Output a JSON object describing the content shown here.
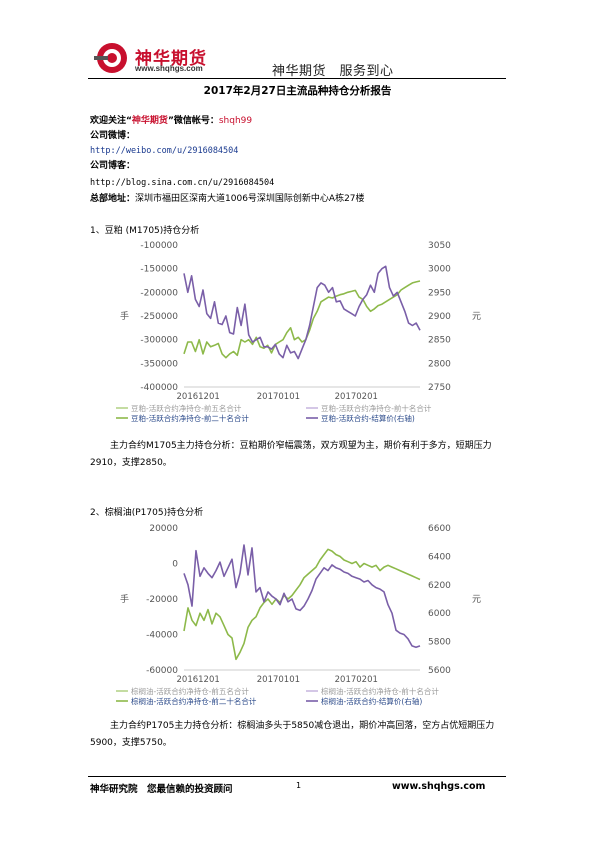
{
  "header": {
    "logo_text": "神华期货",
    "logo_url": "www.shqhgs.com",
    "slogan": "神华期货　服务到心"
  },
  "report_title": "2017年2月27日主流品种持仓分析报告",
  "info": {
    "follow_prefix": "欢迎关注“",
    "follow_brand": "神华期货",
    "follow_suffix": "”微信帐号：",
    "wechat_id": "shqh99",
    "weibo_label": "公司微博：",
    "weibo_url": "http://weibo.com/u/2916084504",
    "blog_label": "公司博客：",
    "blog_url": "http://blog.sina.com.cn/u/2916084504",
    "address_label": "总部地址：",
    "address": "深圳市福田区深南大道1006号深圳国际创新中心A栋27楼"
  },
  "sections": [
    {
      "heading": "1、豆粕 (M1705)持仓分析",
      "paragraph": "主力合约M1705主力持仓分析：豆粕期价窄幅震荡，双方观望为主，期价有利于多方，短期压力2910，支撑2850。"
    },
    {
      "heading": "2、棕榈油(P1705)持仓分析",
      "paragraph": "主力合约P1705主力持仓分析：棕榈油多头于5850减仓退出，期价冲高回落，空方占优短期压力5900，支撑5750。"
    }
  ],
  "chart_data": [
    {
      "type": "line",
      "left_axis_unit": "手",
      "right_axis_unit": "元",
      "ylim_left": [
        -400000,
        -100000
      ],
      "yticks_left": [
        "-100000",
        "-150000",
        "-200000",
        "-250000",
        "-300000",
        "-350000",
        "-400000"
      ],
      "ylim_right": [
        2750,
        3050
      ],
      "yticks_right": [
        "3050",
        "3000",
        "2950",
        "2900",
        "2850",
        "2800",
        "2750"
      ],
      "x_ticks": [
        "20161201",
        "20170101",
        "20170201"
      ],
      "legend": [
        "豆粕-活跃合约净持仓-前五名合计",
        "豆粕-活跃合约净持仓-前十名合计",
        "豆粕-活跃合约净持仓-前二十名合计",
        "豆粕-活跃合约-结算价(右轴)"
      ],
      "series": [
        {
          "name": "豆粕-活跃合约净持仓-前二十名合计",
          "axis": "left",
          "color": "#8db94a",
          "values": [
            -330000,
            -305000,
            -305000,
            -325000,
            -300000,
            -330000,
            -305000,
            -315000,
            -312000,
            -308000,
            -330000,
            -338000,
            -330000,
            -325000,
            -333000,
            -300000,
            -305000,
            -300000,
            -310000,
            -295000,
            -315000,
            -318000,
            -312000,
            -328000,
            -310000,
            -305000,
            -300000,
            -285000,
            -275000,
            -300000,
            -295000,
            -305000,
            -300000,
            -280000,
            -255000,
            -240000,
            -220000,
            -215000,
            -210000,
            -212000,
            -208000,
            -205000,
            -203000,
            -200000,
            -198000,
            -196000,
            -210000,
            -215000,
            -230000,
            -240000,
            -235000,
            -228000,
            -225000,
            -220000,
            -215000,
            -210000,
            -205000,
            -195000,
            -190000,
            -185000,
            -180000,
            -178000,
            -176000
          ]
        },
        {
          "name": "豆粕-活跃合约-结算价(右轴)",
          "axis": "right",
          "color": "#7a5fa8",
          "values": [
            2990,
            2950,
            2985,
            2935,
            2920,
            2955,
            2905,
            2895,
            2930,
            2885,
            2882,
            2900,
            2865,
            2862,
            2918,
            2880,
            2925,
            2860,
            2845,
            2850,
            2855,
            2835,
            2835,
            2830,
            2840,
            2820,
            2812,
            2838,
            2822,
            2825,
            2810,
            2830,
            2850,
            2880,
            2920,
            2960,
            2970,
            2965,
            2950,
            2960,
            2930,
            2932,
            2915,
            2910,
            2905,
            2900,
            2920,
            2935,
            2945,
            2965,
            2950,
            2990,
            3000,
            3005,
            2960,
            2942,
            2950,
            2930,
            2910,
            2885,
            2880,
            2885,
            2870
          ]
        }
      ]
    },
    {
      "type": "line",
      "left_axis_unit": "手",
      "right_axis_unit": "元",
      "ylim_left": [
        -70000,
        10000
      ],
      "yticks_left": [
        "20000",
        "0",
        "-20000",
        "-40000",
        "-60000"
      ],
      "ylim_right": [
        5600,
        6600
      ],
      "yticks_right": [
        "6600",
        "6400",
        "6200",
        "6000",
        "5800",
        "5600"
      ],
      "x_ticks": [
        "20161201",
        "20170101",
        "20170201"
      ],
      "legend": [
        "棕榈油-活跃合约净持仓-前五名合计",
        "棕榈油-活跃合约净持仓-前十名合计",
        "棕榈油-活跃合约净持仓-前二十名合计",
        "棕榈油-活跃合约-结算价(右轴)"
      ],
      "series": [
        {
          "name": "棕榈油-活跃合约净持仓-前二十名合计",
          "axis": "left",
          "color": "#8db94a",
          "values": [
            -48000,
            -35000,
            -42000,
            -45000,
            -38000,
            -42000,
            -36000,
            -44000,
            -38000,
            -40000,
            -45000,
            -50000,
            -52000,
            -64000,
            -60000,
            -55000,
            -46000,
            -42000,
            -40000,
            -35000,
            -32000,
            -30000,
            -33000,
            -30000,
            -32000,
            -28000,
            -30000,
            -28000,
            -25000,
            -22000,
            -18000,
            -16000,
            -14000,
            -12000,
            -8000,
            -5000,
            -2000,
            -3000,
            -5000,
            -6000,
            -8000,
            -9000,
            -10000,
            -9000,
            -12000,
            -10000,
            -11000,
            -12000,
            -11000,
            -14000,
            -12000,
            -11000,
            -12000,
            -13000,
            -14000,
            -15000,
            -16000,
            -17000,
            -18000,
            -19000
          ]
        },
        {
          "name": "棕榈油-活跃合约-结算价(右轴)",
          "axis": "right",
          "color": "#7a5fa8",
          "values": [
            6280,
            6200,
            6050,
            6440,
            6260,
            6320,
            6280,
            6250,
            6300,
            6360,
            6260,
            6320,
            6380,
            6180,
            6280,
            6480,
            6270,
            6460,
            6150,
            6180,
            6080,
            6150,
            6120,
            6100,
            6060,
            6140,
            6080,
            6100,
            6030,
            6020,
            6050,
            6100,
            6160,
            6240,
            6280,
            6320,
            6300,
            6340,
            6320,
            6310,
            6290,
            6280,
            6260,
            6250,
            6240,
            6220,
            6230,
            6200,
            6180,
            6170,
            6150,
            6060,
            6000,
            5880,
            5860,
            5850,
            5820,
            5770,
            5760,
            5770
          ]
        }
      ]
    }
  ],
  "footer": {
    "left": "神华研究院　您最信赖的投资顾问",
    "page_number": "1",
    "right": "www.shqhgs.com"
  }
}
